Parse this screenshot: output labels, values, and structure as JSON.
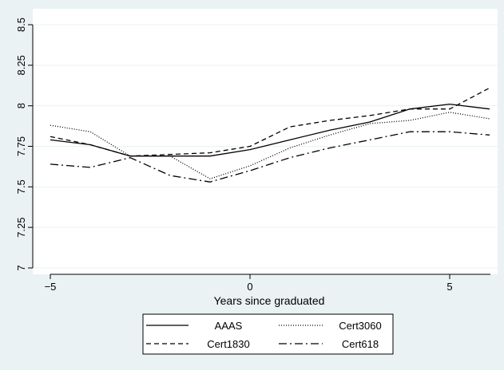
{
  "chart_data": {
    "type": "line",
    "title": "",
    "xlabel": "Years since graduated",
    "ylabel": "",
    "xlim": [
      -5,
      6
    ],
    "ylim": [
      7,
      8.5
    ],
    "x_ticks": [
      -5,
      0,
      5
    ],
    "x_tick_labels": [
      "−5",
      "0",
      "5"
    ],
    "y_ticks": [
      7,
      7.25,
      7.5,
      7.75,
      8,
      8.25,
      8.5
    ],
    "y_tick_labels": [
      "7",
      "7.25",
      "7.5",
      "7.75",
      "8",
      "8.25",
      "8.5"
    ],
    "grid": "horizontal",
    "legend_position": "bottom",
    "colors": {
      "background": "#eaf2f3",
      "plot_background": "#ffffff",
      "line": "#000000"
    },
    "x": [
      -5,
      -4,
      -3,
      -2,
      -1,
      0,
      1,
      2,
      3,
      4,
      5,
      6
    ],
    "series": [
      {
        "name": "AAAS",
        "dash": "solid",
        "values": [
          7.79,
          7.76,
          7.69,
          7.69,
          7.69,
          7.73,
          7.79,
          7.85,
          7.9,
          7.98,
          8.01,
          7.98
        ]
      },
      {
        "name": "Cert3060",
        "dash": "dotted",
        "values": [
          7.88,
          7.84,
          7.69,
          7.69,
          7.55,
          7.63,
          7.74,
          7.82,
          7.89,
          7.91,
          7.96,
          7.92
        ]
      },
      {
        "name": "Cert1830",
        "dash": "dashed",
        "values": [
          7.81,
          7.76,
          7.69,
          7.7,
          7.71,
          7.75,
          7.87,
          7.91,
          7.94,
          7.98,
          7.98,
          8.11
        ]
      },
      {
        "name": "Cert618",
        "dash": "dash-dot",
        "values": [
          7.64,
          7.62,
          7.68,
          7.57,
          7.53,
          7.6,
          7.68,
          7.74,
          7.79,
          7.84,
          7.84,
          7.82
        ]
      }
    ]
  }
}
